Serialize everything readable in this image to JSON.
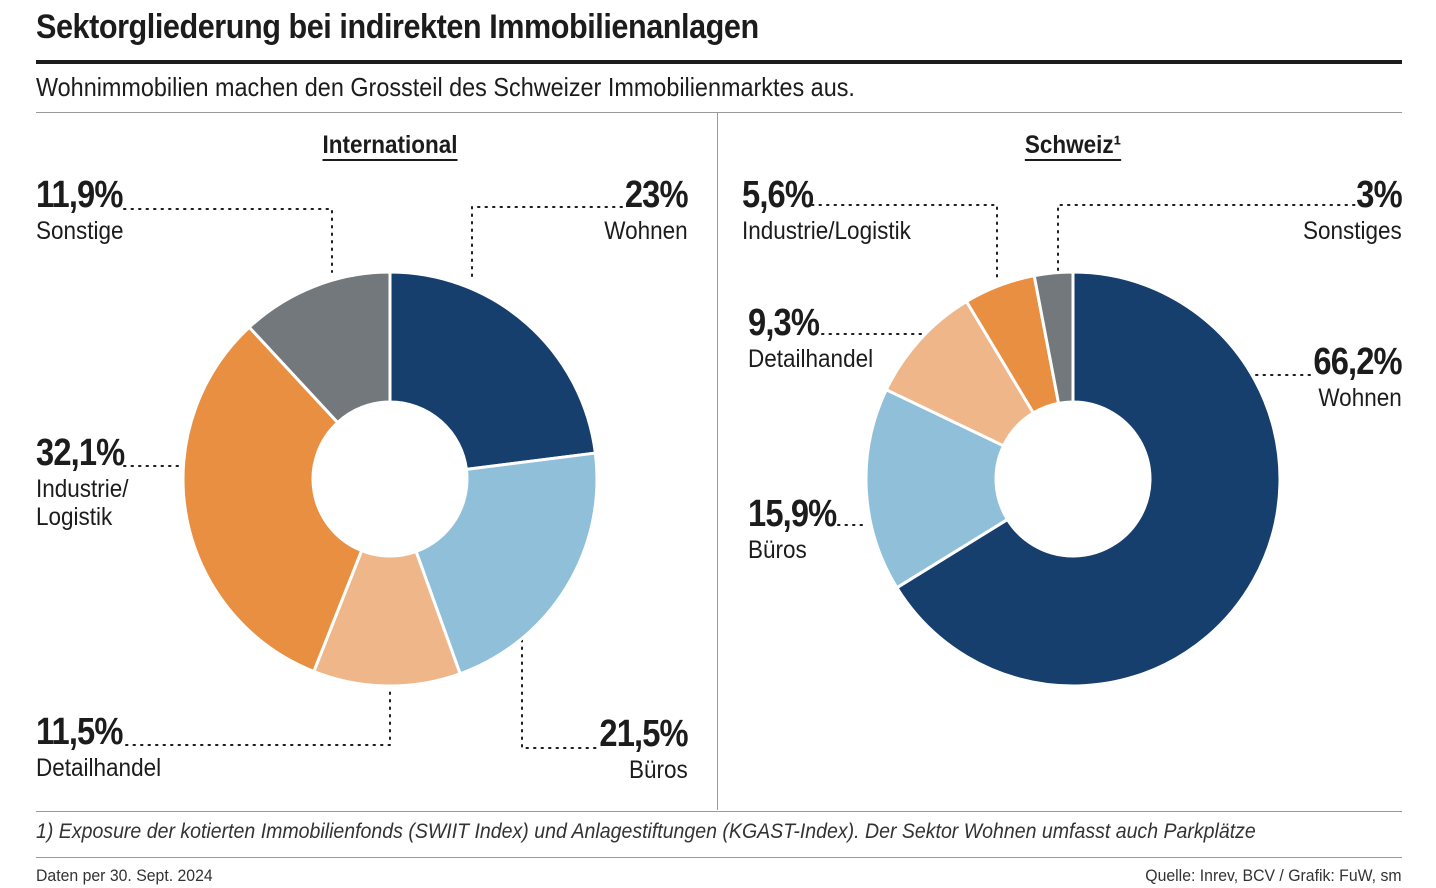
{
  "title": "Sektorgliederung bei indirekten Immobilienanlagen",
  "subtitle": "Wohnimmobilien machen den Grossteil des Schweizer Immobilienmarktes aus.",
  "colors": {
    "wohnen": "#173f6e",
    "bueros": "#8fbfd9",
    "detailhandel": "#efb789",
    "industrie": "#e88f42",
    "sonstige": "#72787b"
  },
  "chart_data": [
    {
      "type": "pie",
      "variant": "donut",
      "title": "International",
      "slices": [
        {
          "label": "Wohnen",
          "value": 23,
          "display": "23%",
          "color": "#173f6e"
        },
        {
          "label": "Büros",
          "value": 21.5,
          "display": "21,5%",
          "color": "#8fbfd9"
        },
        {
          "label": "Detailhandel",
          "value": 11.5,
          "display": "11,5%",
          "color": "#efb789"
        },
        {
          "label": "Industrie/ Logistik",
          "value": 32.1,
          "display": "32,1%",
          "color": "#e88f42"
        },
        {
          "label": "Sonstige",
          "value": 11.9,
          "display": "11,9%",
          "color": "#72787b"
        }
      ]
    },
    {
      "type": "pie",
      "variant": "donut",
      "title": "Schweiz¹",
      "slices": [
        {
          "label": "Wohnen",
          "value": 66.2,
          "display": "66,2%",
          "color": "#173f6e"
        },
        {
          "label": "Büros",
          "value": 15.9,
          "display": "15,9%",
          "color": "#8fbfd9"
        },
        {
          "label": "Detailhandel",
          "value": 9.3,
          "display": "9,3%",
          "color": "#efb789"
        },
        {
          "label": "Industrie/Logistik",
          "value": 5.6,
          "display": "5,6%",
          "color": "#e88f42"
        },
        {
          "label": "Sonstiges",
          "value": 3,
          "display": "3%",
          "color": "#72787b"
        }
      ]
    }
  ],
  "labels": {
    "intl": {
      "wohnen_pct": "23%",
      "wohnen_name": "Wohnen",
      "bueros_pct": "21,5%",
      "bueros_name": "Büros",
      "detail_pct": "11,5%",
      "detail_name": "Detailhandel",
      "industrie_pct": "32,1%",
      "industrie_name_1": "Industrie/",
      "industrie_name_2": "Logistik",
      "sonstige_pct": "11,9%",
      "sonstige_name": "Sonstige"
    },
    "ch": {
      "wohnen_pct": "66,2%",
      "wohnen_name": "Wohnen",
      "bueros_pct": "15,9%",
      "bueros_name": "Büros",
      "detail_pct": "9,3%",
      "detail_name": "Detailhandel",
      "industrie_pct": "5,6%",
      "industrie_name": "Industrie/Logistik",
      "sonstige_pct": "3%",
      "sonstige_name": "Sonstiges"
    }
  },
  "footnote": "1) Exposure der kotierten Immobilienfonds (SWIIT Index) und Anlagestiftungen (KGAST-Index). Der Sektor Wohnen umfasst auch Parkplätze",
  "footer": {
    "date": "Daten per 30. Sept. 2024",
    "source": "Quelle: Inrev, BCV / Grafik: FuW, sm"
  }
}
